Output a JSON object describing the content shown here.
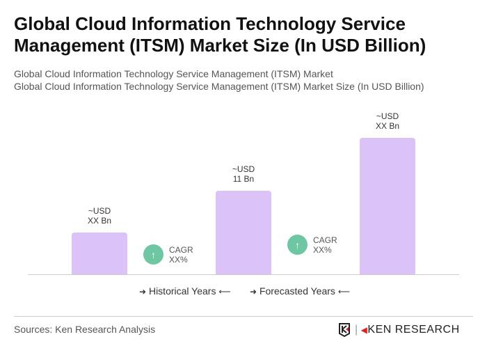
{
  "title": "Global Cloud Information Technology Service Management (ITSM) Market Size (In USD Billion)",
  "subtitle1": "Global Cloud Information Technology Service Management (ITSM) Market",
  "subtitle2": "Global Cloud Information Technology Service Management (ITSM) Market Size (In USD Billion)",
  "chart_data": {
    "type": "bar",
    "categories": [
      "",
      "",
      ""
    ],
    "values": [
      5.5,
      11,
      18
    ],
    "bar_labels": [
      [
        "~USD",
        "XX Bn"
      ],
      [
        "~USD",
        "11 Bn"
      ],
      [
        "~USD",
        "XX Bn"
      ]
    ],
    "bar_color": "#dcc3f7",
    "cagr": [
      {
        "label": "CAGR",
        "value": "XX%"
      },
      {
        "label": "CAGR",
        "value": "XX%"
      }
    ],
    "cagr_color": "#6fc6a2",
    "cagr_icon": "arrow-up-icon",
    "legend": [
      "Historical Years",
      "Forecasted Years"
    ],
    "grid": false
  },
  "footer": {
    "sources": "Sources: Ken Research Analysis",
    "logo_text": "KEN RESEARCH"
  }
}
